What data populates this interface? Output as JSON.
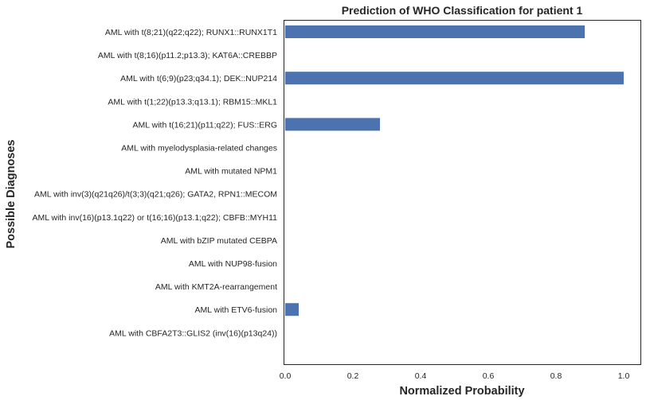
{
  "chart_data": {
    "type": "bar",
    "orientation": "horizontal",
    "title": "Prediction of WHO Classification for patient 1",
    "xlabel": "Normalized Probability",
    "ylabel": "Possible Diagnoses",
    "xlim": [
      0,
      1.05
    ],
    "xticks": [
      "0.0",
      "0.2",
      "0.4",
      "0.6",
      "0.8",
      "1.0"
    ],
    "grid": false,
    "bar_color": "#4c72b0",
    "categories": [
      "AML with t(8;21)(q22;q22); RUNX1::RUNX1T1",
      "AML with t(8;16)(p11.2;p13.3); KAT6A::CREBBP",
      "AML with t(6;9)(p23;q34.1); DEK::NUP214",
      "AML with t(1;22)(p13.3;q13.1); RBM15::MKL1",
      "AML with t(16;21)(p11;q22); FUS::ERG",
      "AML with myelodysplasia-related changes",
      "AML with mutated NPM1",
      "AML with inv(3)(q21q26)/t(3;3)(q21;q26); GATA2, RPN1::MECOM",
      "AML with inv(16)(p13.1q22) or t(16;16)(p13.1;q22); CBFB::MYH11",
      "AML with bZIP mutated CEBPA",
      "AML with NUP98-fusion",
      "AML with KMT2A-rearrangement",
      "AML with ETV6-fusion",
      "AML with CBFA2T3::GLIS2 (inv(16)(p13q24))"
    ],
    "values": [
      0.885,
      0,
      1.0,
      0,
      0.28,
      0,
      0,
      0,
      0,
      0,
      0,
      0,
      0.04,
      0
    ]
  }
}
